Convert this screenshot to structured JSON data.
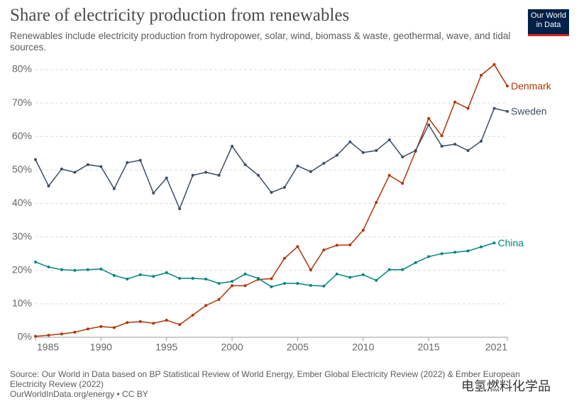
{
  "chart_data": {
    "type": "line",
    "title": "Share of electricity production from renewables",
    "subtitle": "Renewables include electricity production from hydropower, solar, wind, biomass & waste, geothermal, wave, and tidal sources.",
    "logo": "Our World in Data",
    "source": "Source: Our World in Data based on BP Statistical Review of World Energy, Ember Global Electricity Review (2022) & Ember European Electricity Review (2022)",
    "url": "OurWorldInData.org/energy • CC BY",
    "watermark": "电氢燃料化学品",
    "x": [
      1985,
      1986,
      1987,
      1988,
      1989,
      1990,
      1991,
      1992,
      1993,
      1994,
      1995,
      1996,
      1997,
      1998,
      1999,
      2000,
      2001,
      2002,
      2003,
      2004,
      2005,
      2006,
      2007,
      2008,
      2009,
      2010,
      2011,
      2012,
      2013,
      2014,
      2015,
      2016,
      2017,
      2018,
      2019,
      2020,
      2021
    ],
    "xlim": [
      1985,
      2021
    ],
    "xticks": [
      1985,
      1990,
      1995,
      2000,
      2005,
      2010,
      2015,
      2021
    ],
    "ylim": [
      0,
      80
    ],
    "yticks": [
      {
        "value": 0,
        "label": "0%"
      },
      {
        "value": 10,
        "label": "10%"
      },
      {
        "value": 20,
        "label": "20%"
      },
      {
        "value": 30,
        "label": "30%"
      },
      {
        "value": 40,
        "label": "40%"
      },
      {
        "value": 50,
        "label": "50%"
      },
      {
        "value": 60,
        "label": "60%"
      },
      {
        "value": 70,
        "label": "70%"
      },
      {
        "value": 80,
        "label": "80%"
      }
    ],
    "grid": true,
    "series": [
      {
        "name": "Denmark",
        "color": "#b13507",
        "values": [
          0.3,
          0.6,
          1.0,
          1.5,
          2.5,
          3.2,
          2.9,
          4.4,
          4.7,
          4.2,
          5.1,
          3.8,
          6.6,
          9.5,
          11.3,
          15.4,
          15.4,
          17.3,
          17.5,
          23.6,
          27.1,
          20.1,
          26.1,
          27.5,
          27.6,
          32.0,
          40.3,
          48.4,
          46.0,
          55.6,
          65.4,
          60.2,
          70.3,
          68.4,
          78.3,
          81.5,
          75.1
        ]
      },
      {
        "name": "Sweden",
        "color": "#3c4e66",
        "values": [
          53.1,
          45.2,
          50.3,
          49.3,
          51.6,
          51.0,
          44.4,
          52.2,
          52.9,
          43.1,
          47.6,
          38.4,
          48.4,
          49.3,
          48.4,
          57.1,
          51.6,
          48.4,
          43.3,
          44.8,
          51.2,
          49.5,
          52.0,
          54.4,
          58.4,
          55.2,
          55.8,
          59.0,
          53.9,
          55.8,
          63.5,
          57.1,
          57.7,
          55.8,
          58.6,
          68.4,
          67.5
        ]
      },
      {
        "name": "China",
        "color": "#00847e",
        "values": [
          22.5,
          21.0,
          20.2,
          20.0,
          20.2,
          20.4,
          18.5,
          17.4,
          18.7,
          18.2,
          19.3,
          17.6,
          17.6,
          17.4,
          16.1,
          16.7,
          18.9,
          17.6,
          15.1,
          16.1,
          16.1,
          15.5,
          15.3,
          18.9,
          17.9,
          18.7,
          17.0,
          20.2,
          20.2,
          22.3,
          24.1,
          25.0,
          25.4,
          25.8,
          27.0,
          28.2,
          null
        ]
      }
    ]
  }
}
